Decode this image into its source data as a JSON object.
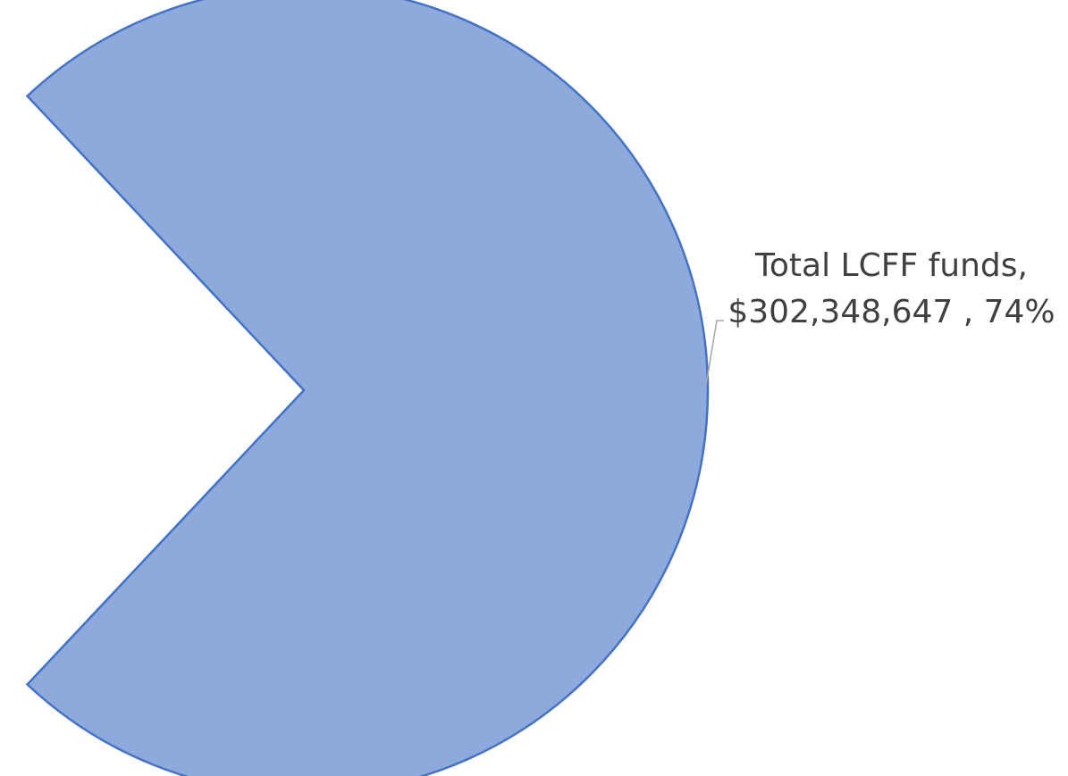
{
  "chart_data": {
    "type": "pie",
    "title": "",
    "slices": [
      {
        "label": "Total LCFF funds",
        "value": 302348647,
        "value_text": "$302,348,647",
        "percent": 74,
        "percent_text": "74%",
        "color": "#8EA9DB",
        "border_color": "#4472C4"
      }
    ],
    "data_labels": {
      "line1": "Total LCFF funds,",
      "line2": "$302,348,647 , 74%"
    },
    "legend": "none"
  }
}
